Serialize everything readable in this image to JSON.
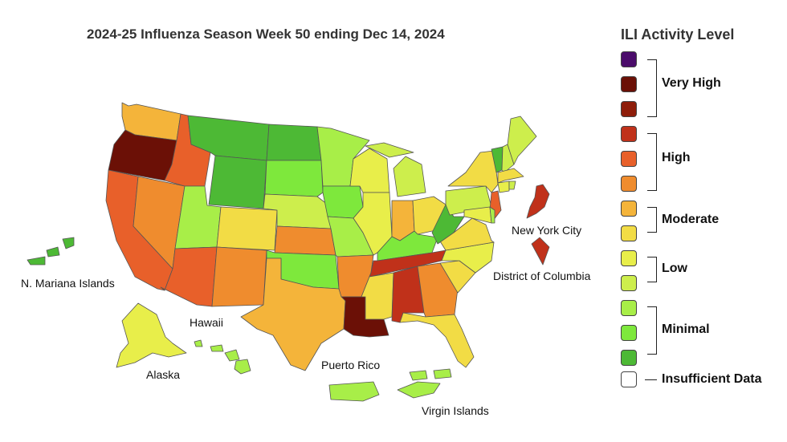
{
  "title": "2024-25 Influenza Season Week 50 ending Dec 14, 2024",
  "legend": {
    "title": "ILI Activity Level",
    "levels": [
      {
        "level": 13,
        "color": "#4b0c6b"
      },
      {
        "level": 12,
        "color": "#6b1006"
      },
      {
        "level": 11,
        "color": "#8e1d0a"
      },
      {
        "level": 10,
        "color": "#c0311a"
      },
      {
        "level": 9,
        "color": "#e8602a"
      },
      {
        "level": 8,
        "color": "#ef8c2e"
      },
      {
        "level": 7,
        "color": "#f4b43a"
      },
      {
        "level": 6,
        "color": "#f2dc45"
      },
      {
        "level": 5,
        "color": "#e8ee4a"
      },
      {
        "level": 4,
        "color": "#cdee4c"
      },
      {
        "level": 3,
        "color": "#a8ee48"
      },
      {
        "level": 2,
        "color": "#7ee83c"
      },
      {
        "level": 1,
        "color": "#4db935"
      }
    ],
    "groups": [
      "Very High",
      "High",
      "Moderate",
      "Low",
      "Minimal"
    ],
    "insufficient": {
      "label": "Insufficient Data",
      "color": "#ffffff"
    }
  },
  "territory_labels": {
    "nmi": "N. Mariana Islands",
    "hawaii": "Hawaii",
    "alaska": "Alaska",
    "puerto_rico": "Puerto Rico",
    "virgin_islands": "Virgin Islands",
    "nyc": "New York City",
    "dc": "District of Columbia"
  },
  "state_levels": {
    "WA": 7,
    "OR": 12,
    "CA": 9,
    "NV": 8,
    "ID": 9,
    "MT": 1,
    "WY": 1,
    "UT": 3,
    "AZ": 9,
    "CO": 6,
    "NM": 8,
    "ND": 1,
    "SD": 2,
    "NE": 4,
    "KS": 8,
    "OK": 2,
    "TX": 7,
    "MN": 3,
    "IA": 2,
    "MO": 3,
    "AR": 8,
    "LA": 12,
    "WI": 5,
    "IL": 5,
    "MI": 4,
    "IN": 7,
    "OH": 6,
    "KY": 2,
    "TN": 10,
    "MS": 6,
    "AL": 10,
    "GA": 8,
    "FL": 6,
    "SC": 6,
    "NC": 5,
    "VA": 6,
    "WV": 1,
    "PA": 4,
    "NY": 6,
    "NJ": 9,
    "DE": 3,
    "MD": 5,
    "VT": 1,
    "NH": 4,
    "ME": 4,
    "MA": 6,
    "CT": 5,
    "RI": 4,
    "AK": 5,
    "HI": 3,
    "PR": 3,
    "VI": 3,
    "MP": 1,
    "NYC": 10,
    "DC": 10
  }
}
